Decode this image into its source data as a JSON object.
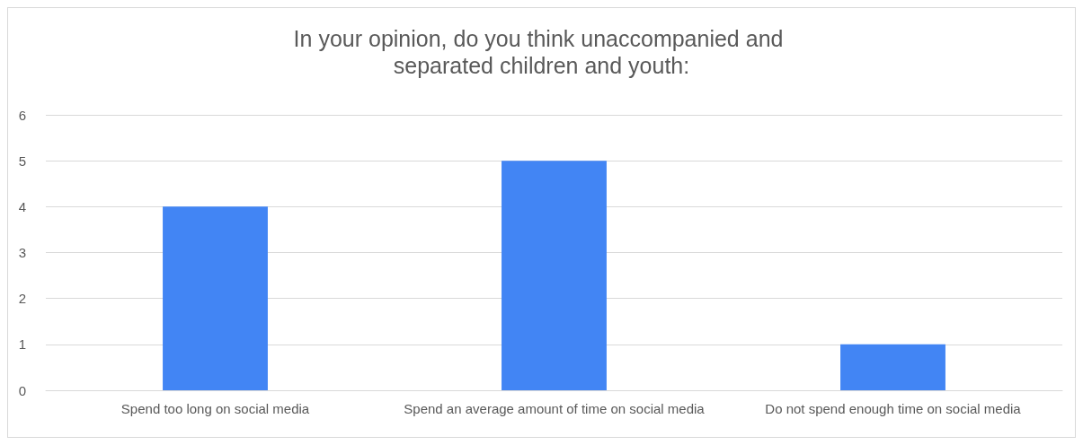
{
  "chart_data": {
    "type": "bar",
    "title": "In your opinion, do you think unaccompanied and separated children and youth:",
    "categories": [
      "Spend too long on social media",
      "Spend an average amount of time on social media",
      "Do not spend enough time on social media"
    ],
    "values": [
      4,
      5,
      1
    ],
    "color": "#4285f4",
    "ylim": [
      0,
      6
    ],
    "yticks": [
      0,
      1,
      2,
      3,
      4,
      5,
      6
    ],
    "grid": "y"
  }
}
